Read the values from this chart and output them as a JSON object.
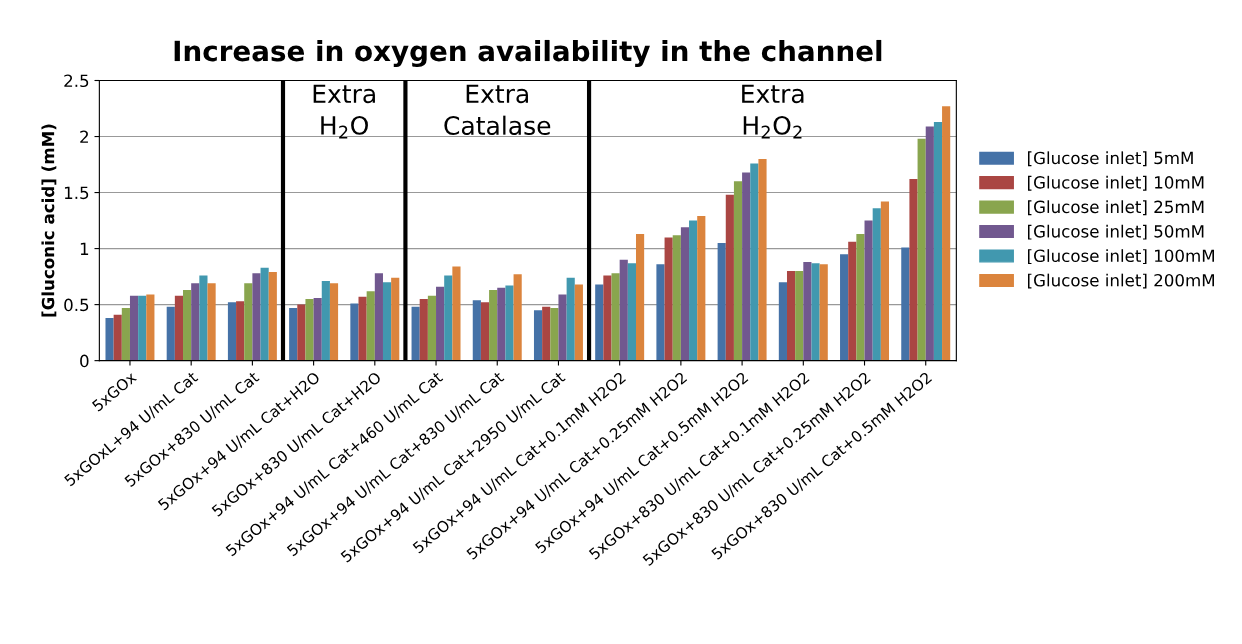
{
  "chart_data": {
    "type": "bar",
    "title": "Increase in oxygen availability in the channel",
    "ylabel": "[Gluconic acid] (mM)",
    "categories": [
      "5xGOx",
      "5xGOxL+94 U/mL Cat",
      "5xGOx+830 U/mL Cat",
      "5xGOx+94 U/mL Cat+H2O",
      "5xGOx+830 U/mL Cat+H2O",
      "5xGOx+94 U/mL Cat+460 U/mL Cat",
      "5xGOx+94 U/mL Cat+830 U/mL Cat",
      "5xGOx+94 U/mL Cat+2950 U/mL Cat",
      "5xGOx+94 U/mL Cat+0.1mM H2O2",
      "5xGOx+94 U/mL Cat+0.25mM H2O2",
      "5xGOx+94 U/mL Cat+0.5mM H2O2",
      "5xGOx+830 U/mL Cat+0.1mM H2O2",
      "5xGOx+830 U/mL Cat+0.25mM H2O2",
      "5xGOx+830 U/mL Cat+0.5mM H2O2"
    ],
    "series": [
      {
        "name": "[Glucose inlet] 5mM",
        "color": "#4572a7",
        "values": [
          0.38,
          0.48,
          0.52,
          0.47,
          0.51,
          0.48,
          0.54,
          0.45,
          0.68,
          0.86,
          1.05,
          0.7,
          0.95,
          1.01
        ]
      },
      {
        "name": "[Glucose inlet] 10mM",
        "color": "#aa4643",
        "values": [
          0.41,
          0.58,
          0.53,
          0.5,
          0.57,
          0.55,
          0.52,
          0.48,
          0.76,
          1.1,
          1.48,
          0.8,
          1.06,
          1.62
        ]
      },
      {
        "name": "[Glucose inlet] 25mM",
        "color": "#89a54e",
        "values": [
          0.47,
          0.63,
          0.69,
          0.55,
          0.62,
          0.58,
          0.63,
          0.47,
          0.78,
          1.12,
          1.6,
          0.8,
          1.13,
          1.98
        ]
      },
      {
        "name": "[Glucose inlet] 50mM",
        "color": "#71588f",
        "values": [
          0.58,
          0.69,
          0.78,
          0.56,
          0.78,
          0.66,
          0.65,
          0.59,
          0.9,
          1.19,
          1.68,
          0.88,
          1.25,
          2.09
        ]
      },
      {
        "name": "[Glucose inlet] 100mM",
        "color": "#4198af",
        "values": [
          0.58,
          0.76,
          0.83,
          0.71,
          0.7,
          0.76,
          0.67,
          0.74,
          0.87,
          1.25,
          1.76,
          0.87,
          1.36,
          2.13
        ]
      },
      {
        "name": "[Glucose inlet] 200mM",
        "color": "#db843d",
        "values": [
          0.59,
          0.69,
          0.79,
          0.69,
          0.74,
          0.84,
          0.77,
          0.68,
          1.13,
          1.29,
          1.8,
          0.86,
          1.42,
          2.27
        ]
      }
    ],
    "ylim": [
      0,
      2.5
    ],
    "yticks": [
      0,
      0.5,
      1,
      1.5,
      2,
      2.5
    ],
    "grid": "y",
    "legend": "right",
    "annotations": [
      "Extra\nH$_{2}$O",
      "Extra\nCatalase",
      "Extra\nH$_{2}$O$_{2}$"
    ]
  }
}
